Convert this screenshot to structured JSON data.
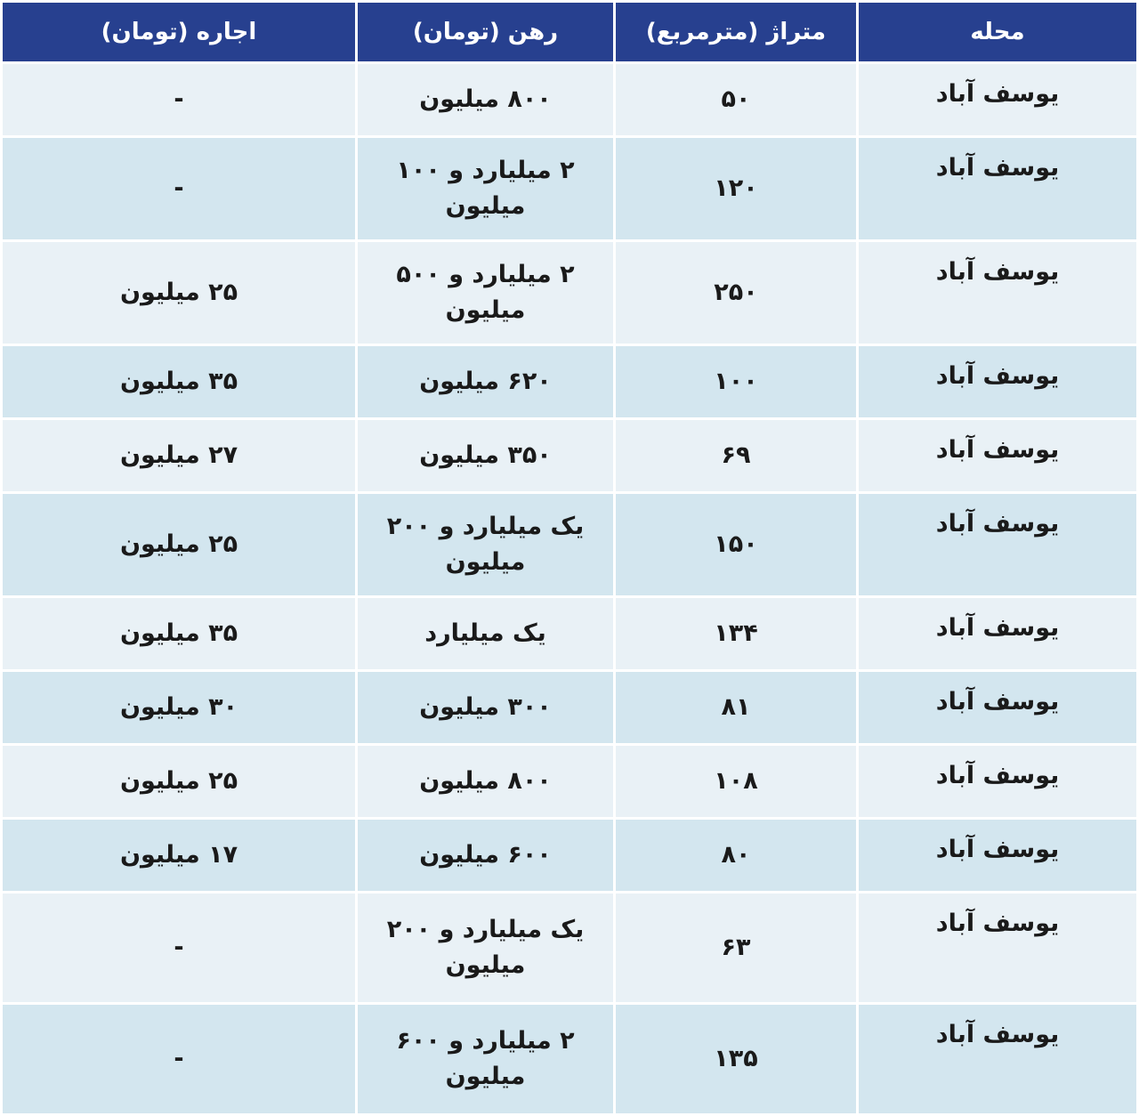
{
  "table": {
    "headers": [
      "محله",
      "متراژ (مترمربع)",
      "رهن (تومان)",
      "اجاره (تومان)"
    ],
    "rows": [
      {
        "area": "یوسف آباد",
        "size": "۵۰",
        "deposit": "۸۰۰ میلیون",
        "rent": "-"
      },
      {
        "area": "یوسف آباد",
        "size": "۱۲۰",
        "deposit": "۲ میلیارد و ۱۰۰ میلیون",
        "rent": "-"
      },
      {
        "area": "یوسف آباد",
        "size": "۲۵۰",
        "deposit": "۲ میلیارد و ۵۰۰ میلیون",
        "rent": "۲۵ میلیون"
      },
      {
        "area": "یوسف آباد",
        "size": "۱۰۰",
        "deposit": "۶۲۰ میلیون",
        "rent": "۳۵ میلیون"
      },
      {
        "area": "یوسف آباد",
        "size": "۶۹",
        "deposit": "۳۵۰ میلیون",
        "rent": "۲۷ میلیون"
      },
      {
        "area": "یوسف آباد",
        "size": "۱۵۰",
        "deposit": "یک میلیارد و ۲۰۰ میلیون",
        "rent": "۲۵ میلیون"
      },
      {
        "area": "یوسف آباد",
        "size": "۱۳۴",
        "deposit": "یک میلیارد",
        "rent": "۳۵ میلیون"
      },
      {
        "area": "یوسف آباد",
        "size": "۸۱",
        "deposit": "۳۰۰ میلیون",
        "rent": "۳۰ میلیون"
      },
      {
        "area": "یوسف آباد",
        "size": "۱۰۸",
        "deposit": "۸۰۰ میلیون",
        "rent": "۲۵ میلیون"
      },
      {
        "area": "یوسف آباد",
        "size": "۸۰",
        "deposit": "۶۰۰ میلیون",
        "rent": "۱۷ میلیون"
      },
      {
        "area": "یوسف آباد",
        "size": "۶۳",
        "deposit": "یک میلیارد و ۲۰۰ میلیون",
        "rent": "-"
      },
      {
        "area": "یوسف آباد",
        "size": "۱۳۵",
        "deposit": "۲ میلیارد و ۶۰۰ میلیون",
        "rent": "-"
      }
    ]
  },
  "colors": {
    "header_bg": "#27408f",
    "row_light": "#e9f1f6",
    "row_dark": "#d3e6ef"
  }
}
